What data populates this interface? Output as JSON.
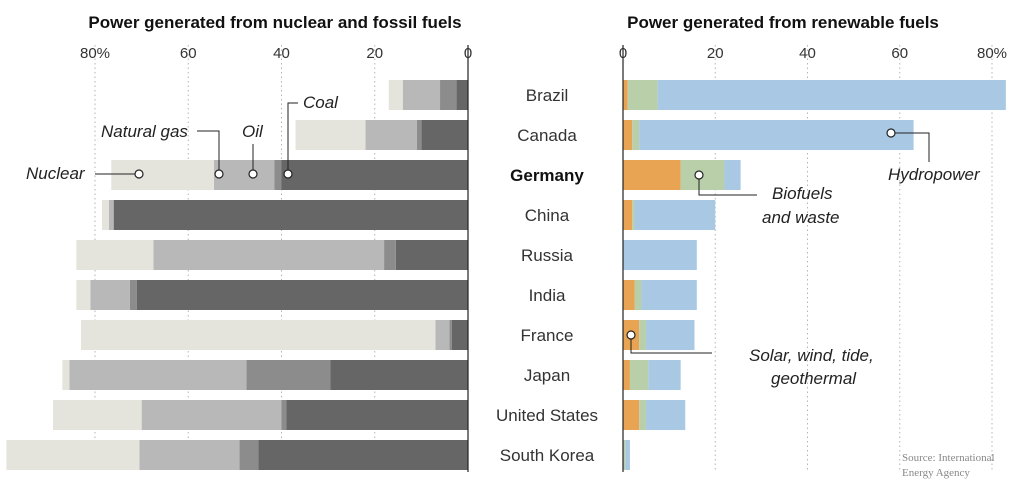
{
  "chart_data": [
    {
      "type": "bar",
      "orientation": "horizontal",
      "stacked": true,
      "direction": "right-to-left",
      "title": "Power generated from nuclear and fossil fuels",
      "xlim": [
        0,
        100
      ],
      "ticks": [
        {
          "value": 80,
          "label": "80%"
        },
        {
          "value": 60,
          "label": "60"
        },
        {
          "value": 40,
          "label": "40"
        },
        {
          "value": 20,
          "label": "20"
        },
        {
          "value": 0,
          "label": "0"
        }
      ],
      "categories": [
        "Brazil",
        "Canada",
        "Germany",
        "China",
        "Russia",
        "India",
        "France",
        "Japan",
        "United States",
        "South Korea"
      ],
      "series": [
        {
          "name": "Coal",
          "color": "#666666",
          "values": [
            2.5,
            10,
            40,
            76,
            15.5,
            71,
            3.5,
            29.5,
            39,
            45
          ]
        },
        {
          "name": "Oil",
          "color": "#8c8c8c",
          "values": [
            3.5,
            1,
            1.5,
            0,
            2.5,
            1.5,
            0.5,
            18,
            1,
            4
          ]
        },
        {
          "name": "Natural gas",
          "color": "#b8b8b8",
          "values": [
            8,
            11,
            13,
            1,
            49.5,
            8.5,
            3,
            38,
            30,
            21.5
          ]
        },
        {
          "name": "Nuclear",
          "color": "#e4e4dc",
          "values": [
            3,
            15,
            22,
            1.5,
            16.5,
            3,
            76,
            1.5,
            19,
            28.5
          ]
        }
      ],
      "annotations": [
        "Nuclear",
        "Natural gas",
        "Oil",
        "Coal"
      ]
    },
    {
      "type": "bar",
      "orientation": "horizontal",
      "stacked": true,
      "title": "Power generated from renewable fuels",
      "xlim": [
        0,
        80
      ],
      "ticks": [
        {
          "value": 0,
          "label": "0"
        },
        {
          "value": 20,
          "label": "20"
        },
        {
          "value": 40,
          "label": "40"
        },
        {
          "value": 60,
          "label": "60"
        },
        {
          "value": 80,
          "label": "80%"
        }
      ],
      "categories": [
        "Brazil",
        "Canada",
        "Germany",
        "China",
        "Russia",
        "India",
        "France",
        "Japan",
        "United States",
        "South Korea"
      ],
      "series": [
        {
          "name": "Solar, wind, tide, geothermal",
          "color": "#e8a452",
          "values": [
            1,
            2,
            12.5,
            2,
            0,
            2.5,
            3.5,
            1.5,
            3.5,
            0
          ]
        },
        {
          "name": "Biofuels and waste",
          "color": "#b9cfaa",
          "values": [
            6.5,
            1.5,
            9.5,
            0.5,
            0,
            1.5,
            1.5,
            4,
            1.5,
            0.5
          ]
        },
        {
          "name": "Hydropower",
          "color": "#a8c8e4",
          "values": [
            75.5,
            59.5,
            3.5,
            17.5,
            16,
            12,
            10.5,
            7,
            8.5,
            1
          ]
        }
      ],
      "annotations": [
        "Hydropower",
        "Biofuels and waste",
        "Solar, wind, tide, geothermal"
      ]
    }
  ],
  "labels": {
    "left_title": "Power generated from nuclear and fossil fuels",
    "right_title": "Power generated from renewable fuels",
    "ann_nuclear": "Nuclear",
    "ann_gas": "Natural gas",
    "ann_oil": "Oil",
    "ann_coal": "Coal",
    "ann_hydro": "Hydropower",
    "ann_bio_1": "Biofuels",
    "ann_bio_2": "and waste",
    "ann_solar_1": "Solar, wind, tide,",
    "ann_solar_2": "geothermal",
    "source_1": "Source: International",
    "source_2": "Energy Agency",
    "highlight_country": "Germany"
  }
}
